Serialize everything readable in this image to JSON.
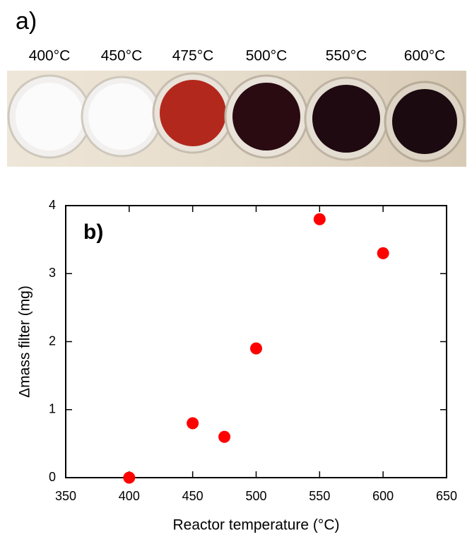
{
  "photo": {
    "label": "a)",
    "labels": [
      "400°C",
      "450°C",
      "475°C",
      "500°C",
      "550°C",
      "600°C"
    ]
  },
  "chart_data": {
    "type": "scatter",
    "annotation": "b)",
    "x_label": "Reactor temperature (°C)",
    "y_label": "Δmass filter (mg)",
    "x": [
      400,
      450,
      475,
      500,
      550,
      600
    ],
    "series": [
      {
        "color": "#ff0000",
        "values": [
          0,
          0.8,
          0.6,
          1.9,
          3.8,
          3.3
        ]
      }
    ],
    "xlim": [
      350,
      650
    ],
    "xticks": [
      350,
      400,
      450,
      500,
      550,
      600,
      650
    ],
    "ylim": [
      0,
      4
    ],
    "yticks": [
      0,
      1,
      2,
      3,
      4
    ]
  }
}
